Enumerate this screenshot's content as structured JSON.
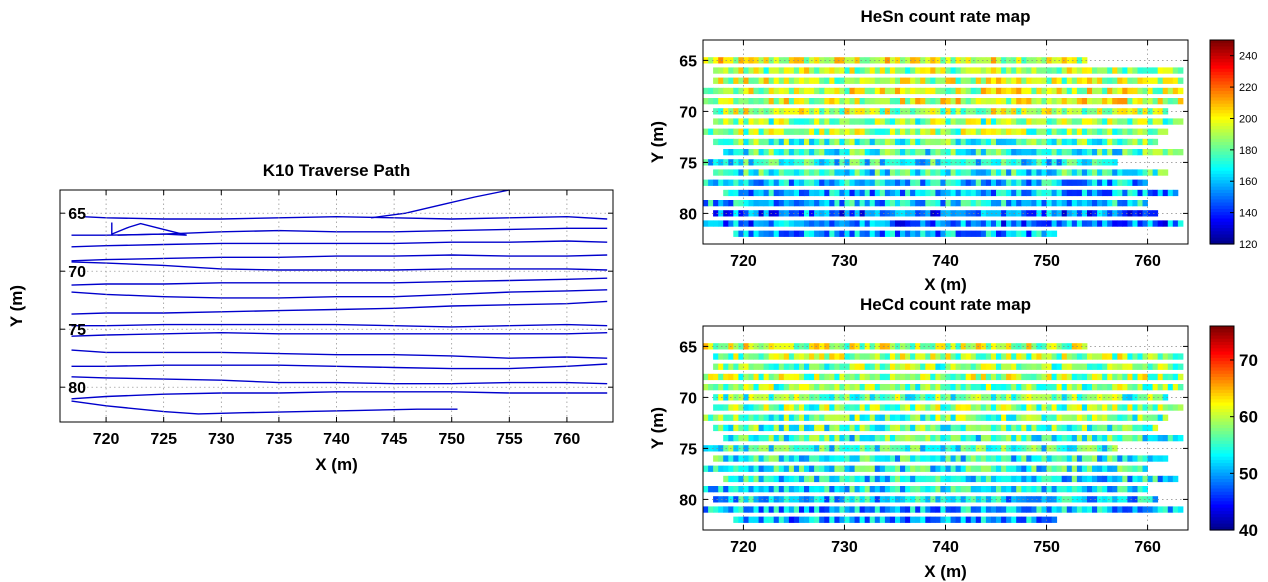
{
  "chart_data": [
    {
      "type": "line",
      "title": "K10 Traverse Path",
      "xlabel": "X (m)",
      "ylabel": "Y (m)",
      "xlim": [
        716,
        764
      ],
      "ylim": [
        63,
        83
      ],
      "y_reversed": true,
      "xticks": [
        720,
        725,
        730,
        735,
        740,
        745,
        750,
        755,
        760
      ],
      "yticks": [
        65,
        70,
        75,
        80
      ],
      "grid": true,
      "line_color": "#0000cc",
      "series": [
        {
          "x": [
            718,
            720,
            725,
            730,
            735,
            740,
            745,
            750,
            755,
            760,
            763.5
          ],
          "y": [
            65.3,
            65.4,
            65.5,
            65.5,
            65.4,
            65.3,
            65.4,
            65.5,
            65.4,
            65.3,
            65.5
          ]
        },
        {
          "x": [
            743,
            746,
            749,
            752,
            755
          ],
          "y": [
            65.4,
            65.0,
            64.3,
            63.6,
            63.0
          ]
        },
        {
          "x": [
            763.5,
            760,
            755,
            750,
            745,
            740,
            735,
            730,
            725,
            720,
            717
          ],
          "y": [
            66.3,
            66.3,
            66.4,
            66.5,
            66.6,
            66.6,
            66.5,
            66.6,
            66.8,
            66.9,
            66.9
          ]
        },
        {
          "x": [
            720.5,
            720.5,
            722,
            723,
            725,
            727,
            725,
            721
          ],
          "y": [
            65.8,
            66.8,
            66.2,
            65.9,
            66.4,
            66.9,
            66.8,
            66.9
          ]
        },
        {
          "x": [
            717,
            720,
            725,
            730,
            735,
            740,
            745,
            750,
            755,
            760,
            763.5
          ],
          "y": [
            67.9,
            67.8,
            67.7,
            67.6,
            67.6,
            67.6,
            67.6,
            67.5,
            67.5,
            67.4,
            67.5
          ]
        },
        {
          "x": [
            763.5,
            760,
            755,
            750,
            745,
            740,
            735,
            730,
            725,
            720,
            717
          ],
          "y": [
            68.6,
            68.7,
            68.7,
            68.6,
            68.7,
            68.7,
            68.8,
            68.8,
            68.9,
            69.0,
            69.1
          ]
        },
        {
          "x": [
            717,
            720,
            725,
            730,
            735,
            740,
            745,
            750,
            755,
            760,
            763.5
          ],
          "y": [
            69.2,
            69.3,
            69.5,
            69.8,
            69.9,
            69.9,
            69.9,
            69.8,
            69.8,
            69.8,
            69.9
          ]
        },
        {
          "x": [
            763.5,
            760,
            755,
            750,
            745,
            740,
            735,
            730,
            725,
            720,
            717
          ],
          "y": [
            70.6,
            70.7,
            70.8,
            70.9,
            71.0,
            71.0,
            71.0,
            71.0,
            71.1,
            71.1,
            71.2
          ]
        },
        {
          "x": [
            717,
            720,
            725,
            730,
            735,
            740,
            745,
            750,
            755,
            760,
            763.5
          ],
          "y": [
            71.8,
            72.0,
            72.2,
            72.3,
            72.3,
            72.2,
            72.2,
            72.0,
            71.8,
            71.7,
            71.6
          ]
        },
        {
          "x": [
            763.5,
            760,
            755,
            750,
            745,
            740,
            735,
            730,
            725,
            720,
            717
          ],
          "y": [
            72.6,
            72.8,
            72.9,
            73.0,
            73.2,
            73.3,
            73.4,
            73.5,
            73.6,
            73.6,
            73.7
          ]
        },
        {
          "x": [
            717,
            720,
            725,
            730,
            735,
            740,
            745,
            750,
            755,
            760,
            763.5
          ],
          "y": [
            74.7,
            74.7,
            74.6,
            74.6,
            74.6,
            74.6,
            74.7,
            74.8,
            74.7,
            74.6,
            74.7
          ]
        },
        {
          "x": [
            763.5,
            760,
            755,
            750,
            745,
            740,
            735,
            730,
            725,
            720,
            717
          ],
          "y": [
            75.3,
            75.4,
            75.4,
            75.4,
            75.4,
            75.4,
            75.4,
            75.3,
            75.4,
            75.5,
            75.6
          ]
        },
        {
          "x": [
            717,
            720,
            725,
            730,
            735,
            740,
            745,
            750,
            755,
            760,
            763.5
          ],
          "y": [
            76.8,
            77.0,
            77.0,
            77.0,
            77.1,
            77.2,
            77.2,
            77.3,
            77.5,
            77.4,
            77.5
          ]
        },
        {
          "x": [
            763.5,
            760,
            755,
            750,
            745,
            740,
            735,
            730,
            725,
            720,
            717
          ],
          "y": [
            78.0,
            78.2,
            78.4,
            78.4,
            78.3,
            78.2,
            78.1,
            78.1,
            78.1,
            78.2,
            78.2
          ]
        },
        {
          "x": [
            717,
            720,
            725,
            730,
            735,
            740,
            745,
            750,
            755,
            760,
            763.5
          ],
          "y": [
            79.1,
            79.2,
            79.3,
            79.4,
            79.6,
            79.6,
            79.7,
            79.7,
            79.6,
            79.6,
            79.7
          ]
        },
        {
          "x": [
            763.5,
            760,
            755,
            750,
            745,
            740,
            735,
            730,
            725,
            720,
            717
          ],
          "y": [
            80.5,
            80.5,
            80.5,
            80.4,
            80.4,
            80.4,
            80.5,
            80.5,
            80.6,
            80.8,
            81.0
          ]
        },
        {
          "x": [
            717,
            720,
            725,
            728,
            732,
            737,
            742,
            747,
            750.5
          ],
          "y": [
            81.2,
            81.6,
            82.1,
            82.3,
            82.2,
            82.1,
            82.0,
            81.9,
            81.9
          ]
        }
      ]
    },
    {
      "type": "heatmap",
      "title": "HeSn count rate map",
      "xlabel": "X (m)",
      "ylabel": "Y (m)",
      "xlim": [
        716,
        764
      ],
      "ylim": [
        63,
        83
      ],
      "y_reversed": true,
      "xticks": [
        720,
        730,
        740,
        750,
        760
      ],
      "yticks": [
        65,
        70,
        75,
        80
      ],
      "grid": true,
      "colorbar": {
        "colormap": "jet",
        "min": 120,
        "max": 250,
        "ticks": [
          120,
          140,
          160,
          180,
          200,
          220,
          240
        ]
      },
      "rows": [
        {
          "y": 65,
          "start": 716,
          "end": 754,
          "value": 196
        },
        {
          "y": 66,
          "start": 717,
          "end": 763.5,
          "value": 190
        },
        {
          "y": 67,
          "start": 717,
          "end": 763.5,
          "value": 192
        },
        {
          "y": 68,
          "start": 716,
          "end": 763.5,
          "value": 194
        },
        {
          "y": 69,
          "start": 716,
          "end": 763.5,
          "value": 196
        },
        {
          "y": 70,
          "start": 717,
          "end": 762,
          "value": 192
        },
        {
          "y": 71,
          "start": 717,
          "end": 763.5,
          "value": 185
        },
        {
          "y": 72,
          "start": 716,
          "end": 762,
          "value": 188
        },
        {
          "y": 73,
          "start": 717,
          "end": 761,
          "value": 180
        },
        {
          "y": 74,
          "start": 718,
          "end": 763.5,
          "value": 175
        },
        {
          "y": 75,
          "start": 716,
          "end": 757,
          "value": 170
        },
        {
          "y": 76,
          "start": 717,
          "end": 762,
          "value": 172
        },
        {
          "y": 77,
          "start": 716,
          "end": 760,
          "value": 162
        },
        {
          "y": 78,
          "start": 718,
          "end": 763,
          "value": 160
        },
        {
          "y": 79,
          "start": 716,
          "end": 760,
          "value": 162
        },
        {
          "y": 80,
          "start": 717,
          "end": 761,
          "value": 150
        },
        {
          "y": 81,
          "start": 716,
          "end": 763.5,
          "value": 152
        },
        {
          "y": 82,
          "start": 719,
          "end": 751,
          "value": 158
        }
      ]
    },
    {
      "type": "heatmap",
      "title": "HeCd count rate map",
      "xlabel": "X (m)",
      "ylabel": "Y (m)",
      "xlim": [
        716,
        764
      ],
      "ylim": [
        63,
        83
      ],
      "y_reversed": true,
      "xticks": [
        720,
        730,
        740,
        750,
        760
      ],
      "yticks": [
        65,
        70,
        75,
        80
      ],
      "grid": true,
      "colorbar": {
        "colormap": "jet",
        "min": 40,
        "max": 76,
        "ticks": [
          40,
          50,
          60,
          70
        ]
      },
      "rows": [
        {
          "y": 65,
          "start": 716,
          "end": 754,
          "value": 60
        },
        {
          "y": 66,
          "start": 717,
          "end": 763.5,
          "value": 59
        },
        {
          "y": 67,
          "start": 717,
          "end": 763.5,
          "value": 58
        },
        {
          "y": 68,
          "start": 716,
          "end": 763.5,
          "value": 59
        },
        {
          "y": 69,
          "start": 716,
          "end": 763.5,
          "value": 58
        },
        {
          "y": 70,
          "start": 717,
          "end": 762,
          "value": 57
        },
        {
          "y": 71,
          "start": 717,
          "end": 763.5,
          "value": 58
        },
        {
          "y": 72,
          "start": 716,
          "end": 762,
          "value": 57
        },
        {
          "y": 73,
          "start": 717,
          "end": 761,
          "value": 56
        },
        {
          "y": 74,
          "start": 718,
          "end": 763.5,
          "value": 55
        },
        {
          "y": 75,
          "start": 716,
          "end": 757,
          "value": 55
        },
        {
          "y": 76,
          "start": 717,
          "end": 762,
          "value": 54
        },
        {
          "y": 77,
          "start": 716,
          "end": 760,
          "value": 54
        },
        {
          "y": 78,
          "start": 718,
          "end": 763,
          "value": 53
        },
        {
          "y": 79,
          "start": 716,
          "end": 760,
          "value": 53
        },
        {
          "y": 80,
          "start": 717,
          "end": 761,
          "value": 52
        },
        {
          "y": 81,
          "start": 716,
          "end": 763.5,
          "value": 51
        },
        {
          "y": 82,
          "start": 719,
          "end": 751,
          "value": 50
        }
      ]
    }
  ]
}
